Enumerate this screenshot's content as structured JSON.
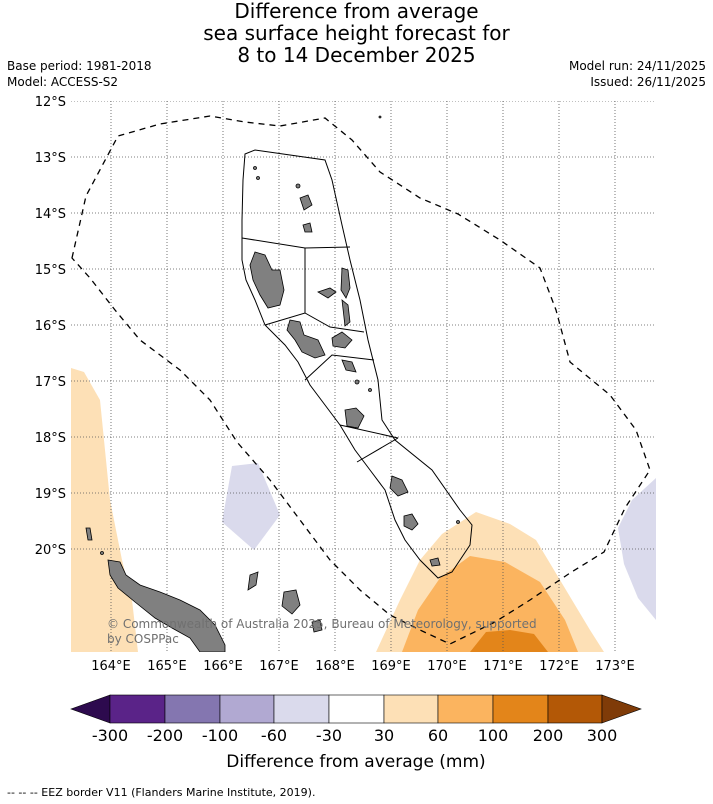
{
  "title": {
    "line1": "Difference from average",
    "line2": "sea surface height forecast for",
    "line3": "8 to 14 December 2025"
  },
  "meta": {
    "base_period": "Base period: 1981-2018",
    "model": "Model: ACCESS-S2",
    "model_run": "Model run: 24/11/2025",
    "issued": "Issued: 26/11/2025"
  },
  "latitudes": [
    "12°S",
    "13°S",
    "14°S",
    "15°S",
    "16°S",
    "17°S",
    "18°S",
    "19°S",
    "20°S"
  ],
  "longitudes": [
    "164°E",
    "165°E",
    "166°E",
    "167°E",
    "168°E",
    "169°E",
    "170°E",
    "171°E",
    "172°E",
    "173°E"
  ],
  "copyright": {
    "line1": "© Commonwealth of Australia 2025, Bureau of Meteorology, supported",
    "line2": "by COSPPac"
  },
  "colorbar": {
    "title": "Difference from average (mm)",
    "ticks": [
      "-300",
      "-200",
      "-100",
      "-60",
      "-30",
      "30",
      "60",
      "100",
      "200",
      "300"
    ],
    "colors": {
      "under": "#2d0a4e",
      "c1": "#5a2388",
      "c2": "#8476b0",
      "c3": "#b1a9d2",
      "c4": "#dadaec",
      "c5": "#ffffff",
      "c6": "#fde0b6",
      "c7": "#fbb45f",
      "c8": "#e3851a",
      "c9": "#b35806",
      "over": "#7f3b08"
    }
  },
  "footer": "-- -- -- EEZ border V11 (Flanders Marine Institute, 2019).",
  "land_color": "#808080"
}
